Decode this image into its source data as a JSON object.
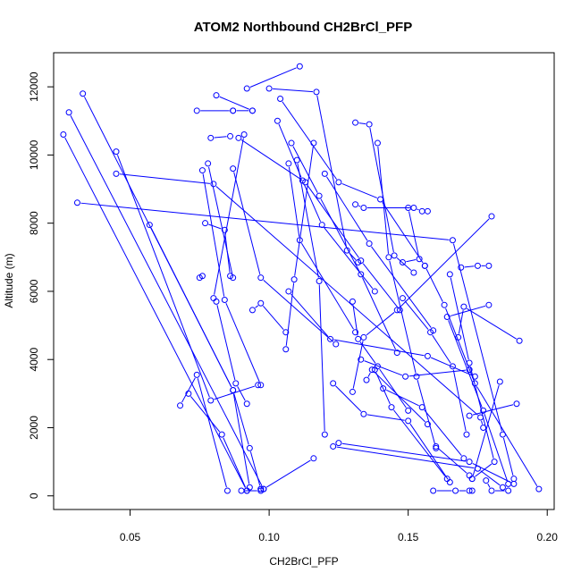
{
  "chart_data": {
    "type": "scatter",
    "title": "ATOM2 Northbound CH2BrCl_PFP",
    "xlabel": "CH2BrCl_PFP",
    "ylabel": "Altitude (m)",
    "xlim": [
      0.0225,
      0.2025
    ],
    "ylim": [
      -400,
      13000
    ],
    "x_ticks": [
      0.05,
      0.1,
      0.15,
      0.2
    ],
    "x_tick_labels": [
      "0.05",
      "0.10",
      "0.15",
      "0.20"
    ],
    "y_ticks": [
      0,
      2000,
      4000,
      6000,
      8000,
      10000,
      12000
    ],
    "y_tick_labels": [
      "0",
      "2000",
      "4000",
      "6000",
      "8000",
      "10000",
      "12000"
    ],
    "grid": false,
    "legend": "none",
    "color": "#0000ff",
    "series": [
      {
        "x": [
          0.111,
          0.092
        ],
        "y": [
          12600,
          11950
        ]
      },
      {
        "x": [
          0.1,
          0.117,
          0.128,
          0.132
        ],
        "y": [
          11950,
          11850,
          7200,
          6850
        ]
      },
      {
        "x": [
          0.033,
          0.087,
          0.093,
          0.097
        ],
        "y": [
          11800,
          3100,
          1400,
          200
        ]
      },
      {
        "x": [
          0.028,
          0.098
        ],
        "y": [
          11250,
          200
        ]
      },
      {
        "x": [
          0.026,
          0.092
        ],
        "y": [
          10600,
          150
        ]
      },
      {
        "x": [
          0.074,
          0.087
        ],
        "y": [
          11300,
          11300
        ]
      },
      {
        "x": [
          0.081,
          0.094
        ],
        "y": [
          11750,
          11300
        ]
      },
      {
        "x": [
          0.087,
          0.094
        ],
        "y": [
          11300,
          11300
        ]
      },
      {
        "x": [
          0.104,
          0.125,
          0.14,
          0.156
        ],
        "y": [
          11650,
          9200,
          8700,
          6750
        ]
      },
      {
        "x": [
          0.103,
          0.112,
          0.119,
          0.138
        ],
        "y": [
          11000,
          9250,
          7950,
          6000
        ]
      },
      {
        "x": [
          0.131,
          0.136,
          0.145,
          0.152
        ],
        "y": [
          10950,
          10900,
          7050,
          6550
        ]
      },
      {
        "x": [
          0.079,
          0.086
        ],
        "y": [
          10500,
          10550
        ]
      },
      {
        "x": [
          0.089,
          0.113,
          0.133,
          0.147
        ],
        "y": [
          10500,
          9200,
          6900,
          5450
        ]
      },
      {
        "x": [
          0.091,
          0.08
        ],
        "y": [
          10600,
          5800
        ]
      },
      {
        "x": [
          0.108,
          0.118,
          0.133,
          0.146
        ],
        "y": [
          10350,
          8800,
          6500,
          4200
        ]
      },
      {
        "x": [
          0.116,
          0.109,
          0.106
        ],
        "y": [
          10350,
          6350,
          4300
        ]
      },
      {
        "x": [
          0.139,
          0.143,
          0.153,
          0.16
        ],
        "y": [
          10350,
          7000,
          3500,
          1400
        ]
      },
      {
        "x": [
          0.045,
          0.079,
          0.096
        ],
        "y": [
          10100,
          2800,
          3250
        ]
      },
      {
        "x": [
          0.045,
          0.08,
          0.176,
          0.177
        ],
        "y": [
          9450,
          9150,
          2300,
          2000
        ]
      },
      {
        "x": [
          0.076,
          0.084,
          0.097
        ],
        "y": [
          9550,
          5750,
          3250
        ]
      },
      {
        "x": [
          0.087,
          0.097,
          0.124
        ],
        "y": [
          9600,
          6400,
          4450
        ]
      },
      {
        "x": [
          0.107,
          0.111,
          0.131
        ],
        "y": [
          9750,
          7500,
          4800
        ]
      },
      {
        "x": [
          0.078,
          0.087
        ],
        "y": [
          9750,
          6400
        ]
      },
      {
        "x": [
          0.11,
          0.118,
          0.12
        ],
        "y": [
          9850,
          6300,
          1800
        ]
      },
      {
        "x": [
          0.12,
          0.136,
          0.159
        ],
        "y": [
          9450,
          7400,
          4850
        ]
      },
      {
        "x": [
          0.031,
          0.166,
          0.184,
          0.188
        ],
        "y": [
          8600,
          7500,
          1800,
          500
        ]
      },
      {
        "x": [
          0.057,
          0.087,
          0.093
        ],
        "y": [
          7950,
          3100,
          250
        ]
      },
      {
        "x": [
          0.131,
          0.134,
          0.152,
          0.155,
          0.157
        ],
        "y": [
          8550,
          8450,
          8450,
          8350,
          8350
        ]
      },
      {
        "x": [
          0.18,
          0.146,
          0.134,
          0.13
        ],
        "y": [
          8200,
          5450,
          4650,
          3050
        ]
      },
      {
        "x": [
          0.077,
          0.084,
          0.086
        ],
        "y": [
          8000,
          7800,
          6450
        ]
      },
      {
        "x": [
          0.15,
          0.154,
          0.148
        ],
        "y": [
          8450,
          6950,
          6850
        ]
      },
      {
        "x": [
          0.169,
          0.175,
          0.179
        ],
        "y": [
          6700,
          6750,
          6750
        ]
      },
      {
        "x": [
          0.075,
          0.076
        ],
        "y": [
          6400,
          6450
        ]
      },
      {
        "x": [
          0.165,
          0.172,
          0.181,
          0.173
        ],
        "y": [
          6500,
          3900,
          1000,
          500
        ]
      },
      {
        "x": [
          0.156,
          0.163,
          0.174,
          0.197
        ],
        "y": [
          6750,
          5600,
          3300,
          200
        ]
      },
      {
        "x": [
          0.13,
          0.132,
          0.139,
          0.15
        ],
        "y": [
          5700,
          4600,
          3800,
          2500
        ]
      },
      {
        "x": [
          0.094,
          0.097,
          0.106
        ],
        "y": [
          5450,
          5650,
          4800
        ]
      },
      {
        "x": [
          0.107,
          0.122,
          0.157,
          0.174
        ],
        "y": [
          6000,
          4600,
          4100,
          3500
        ]
      },
      {
        "x": [
          0.081,
          0.088,
          0.092
        ],
        "y": [
          5700,
          3300,
          2700
        ]
      },
      {
        "x": [
          0.148,
          0.158,
          0.166,
          0.171
        ],
        "y": [
          5800,
          4800,
          3800,
          1800
        ]
      },
      {
        "x": [
          0.179,
          0.164,
          0.177,
          0.186
        ],
        "y": [
          5600,
          5250,
          2500,
          350
        ]
      },
      {
        "x": [
          0.19,
          0.17,
          0.168
        ],
        "y": [
          4550,
          5550,
          4650
        ]
      },
      {
        "x": [
          0.133,
          0.149,
          0.172
        ],
        "y": [
          4000,
          3500,
          3700
        ]
      },
      {
        "x": [
          0.138,
          0.144,
          0.164
        ],
        "y": [
          3700,
          2600,
          500
        ]
      },
      {
        "x": [
          0.135,
          0.137,
          0.157
        ],
        "y": [
          3400,
          3700,
          2100
        ]
      },
      {
        "x": [
          0.123,
          0.134,
          0.15,
          0.165
        ],
        "y": [
          3300,
          2400,
          2200,
          400
        ]
      },
      {
        "x": [
          0.141,
          0.155,
          0.17
        ],
        "y": [
          3150,
          2600,
          1100
        ]
      },
      {
        "x": [
          0.068,
          0.074,
          0.085
        ],
        "y": [
          2650,
          3550,
          150
        ]
      },
      {
        "x": [
          0.071,
          0.083,
          0.092
        ],
        "y": [
          3000,
          1800,
          150
        ]
      },
      {
        "x": [
          0.183,
          0.173
        ],
        "y": [
          3350,
          500
        ]
      },
      {
        "x": [
          0.189,
          0.172
        ],
        "y": [
          2700,
          2350
        ]
      },
      {
        "x": [
          0.125,
          0.172,
          0.188
        ],
        "y": [
          1550,
          1000,
          350
        ]
      },
      {
        "x": [
          0.116,
          0.098,
          0.097
        ],
        "y": [
          1100,
          200,
          200
        ]
      },
      {
        "x": [
          0.123,
          0.175,
          0.184
        ],
        "y": [
          1450,
          800,
          250
        ]
      },
      {
        "x": [
          0.16,
          0.172
        ],
        "y": [
          1450,
          600
        ]
      },
      {
        "x": [
          0.178,
          0.18,
          0.186
        ],
        "y": [
          450,
          150,
          150
        ]
      },
      {
        "x": [
          0.09,
          0.097
        ],
        "y": [
          150,
          150
        ]
      },
      {
        "x": [
          0.159,
          0.167,
          0.172,
          0.173
        ],
        "y": [
          150,
          150,
          150,
          150
        ]
      }
    ]
  }
}
